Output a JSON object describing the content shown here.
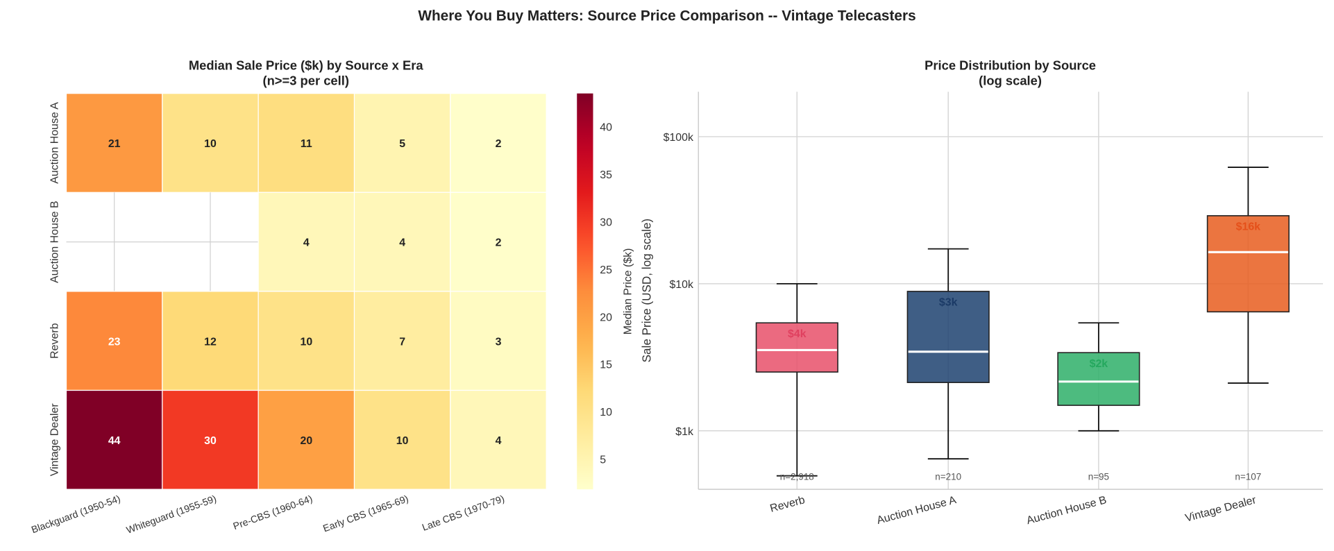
{
  "suptitle": "Where You Buy Matters: Source Price Comparison -- Vintage Telecasters",
  "chart_data": [
    {
      "type": "heatmap",
      "title": "Median Sale Price ($k) by Source x Era",
      "subtitle": "(n>=3 per cell)",
      "rows": [
        "Auction House A",
        "Auction House B",
        "Reverb",
        "Vintage Dealer"
      ],
      "columns": [
        "Blackguard (1950-54)",
        "Whiteguard (1955-59)",
        "Pre-CBS (1960-64)",
        "Early CBS (1965-69)",
        "Late CBS (1970-79)"
      ],
      "values": [
        [
          21,
          10,
          11,
          5,
          2
        ],
        [
          null,
          null,
          4,
          4,
          2
        ],
        [
          23,
          12,
          10,
          7,
          3
        ],
        [
          44,
          30,
          20,
          10,
          4
        ]
      ],
      "colormap": "YlOrRd",
      "vmin": 1.8,
      "vmax": 43.5,
      "colorbar": {
        "label": "Median Price ($k)",
        "ticks": [
          5,
          10,
          15,
          20,
          25,
          30,
          35,
          40
        ]
      }
    },
    {
      "type": "box",
      "title": "Price Distribution by Source",
      "subtitle": "(log scale)",
      "ylabel": "Sale Price (USD, log scale)",
      "yscale": "log",
      "ylim": [
        400,
        202000
      ],
      "yticks": [
        {
          "value": 1000,
          "label": "$1k"
        },
        {
          "value": 10000,
          "label": "$10k"
        },
        {
          "value": 100000,
          "label": "$100k"
        }
      ],
      "grid": true,
      "series": [
        {
          "name": "Reverb",
          "whisker_low": 494,
          "q1": 2510,
          "median": 3540,
          "q3": 5420,
          "whisker_high": 10000,
          "median_label": "$4k",
          "n_label": "n=2,918",
          "color": "#e8506a",
          "label_color": "#e0405f"
        },
        {
          "name": "Auction House A",
          "whisker_low": 645,
          "q1": 2130,
          "median": 3450,
          "q3": 8870,
          "whisker_high": 17260,
          "median_label": "$3k",
          "n_label": "n=210",
          "color": "#1d4270",
          "label_color": "#1b3a66"
        },
        {
          "name": "Auction House B",
          "whisker_low": 1000,
          "q1": 1490,
          "median": 2160,
          "q3": 3400,
          "whisker_high": 5420,
          "median_label": "$2k",
          "n_label": "n=95",
          "color": "#2eaf68",
          "label_color": "#25a85e"
        },
        {
          "name": "Vintage Dealer",
          "whisker_low": 2110,
          "q1": 6440,
          "median": 16400,
          "q3": 29000,
          "whisker_high": 61900,
          "median_label": "$16k",
          "n_label": "n=107",
          "color": "#e85d1f",
          "label_color": "#e5501a"
        }
      ]
    }
  ]
}
